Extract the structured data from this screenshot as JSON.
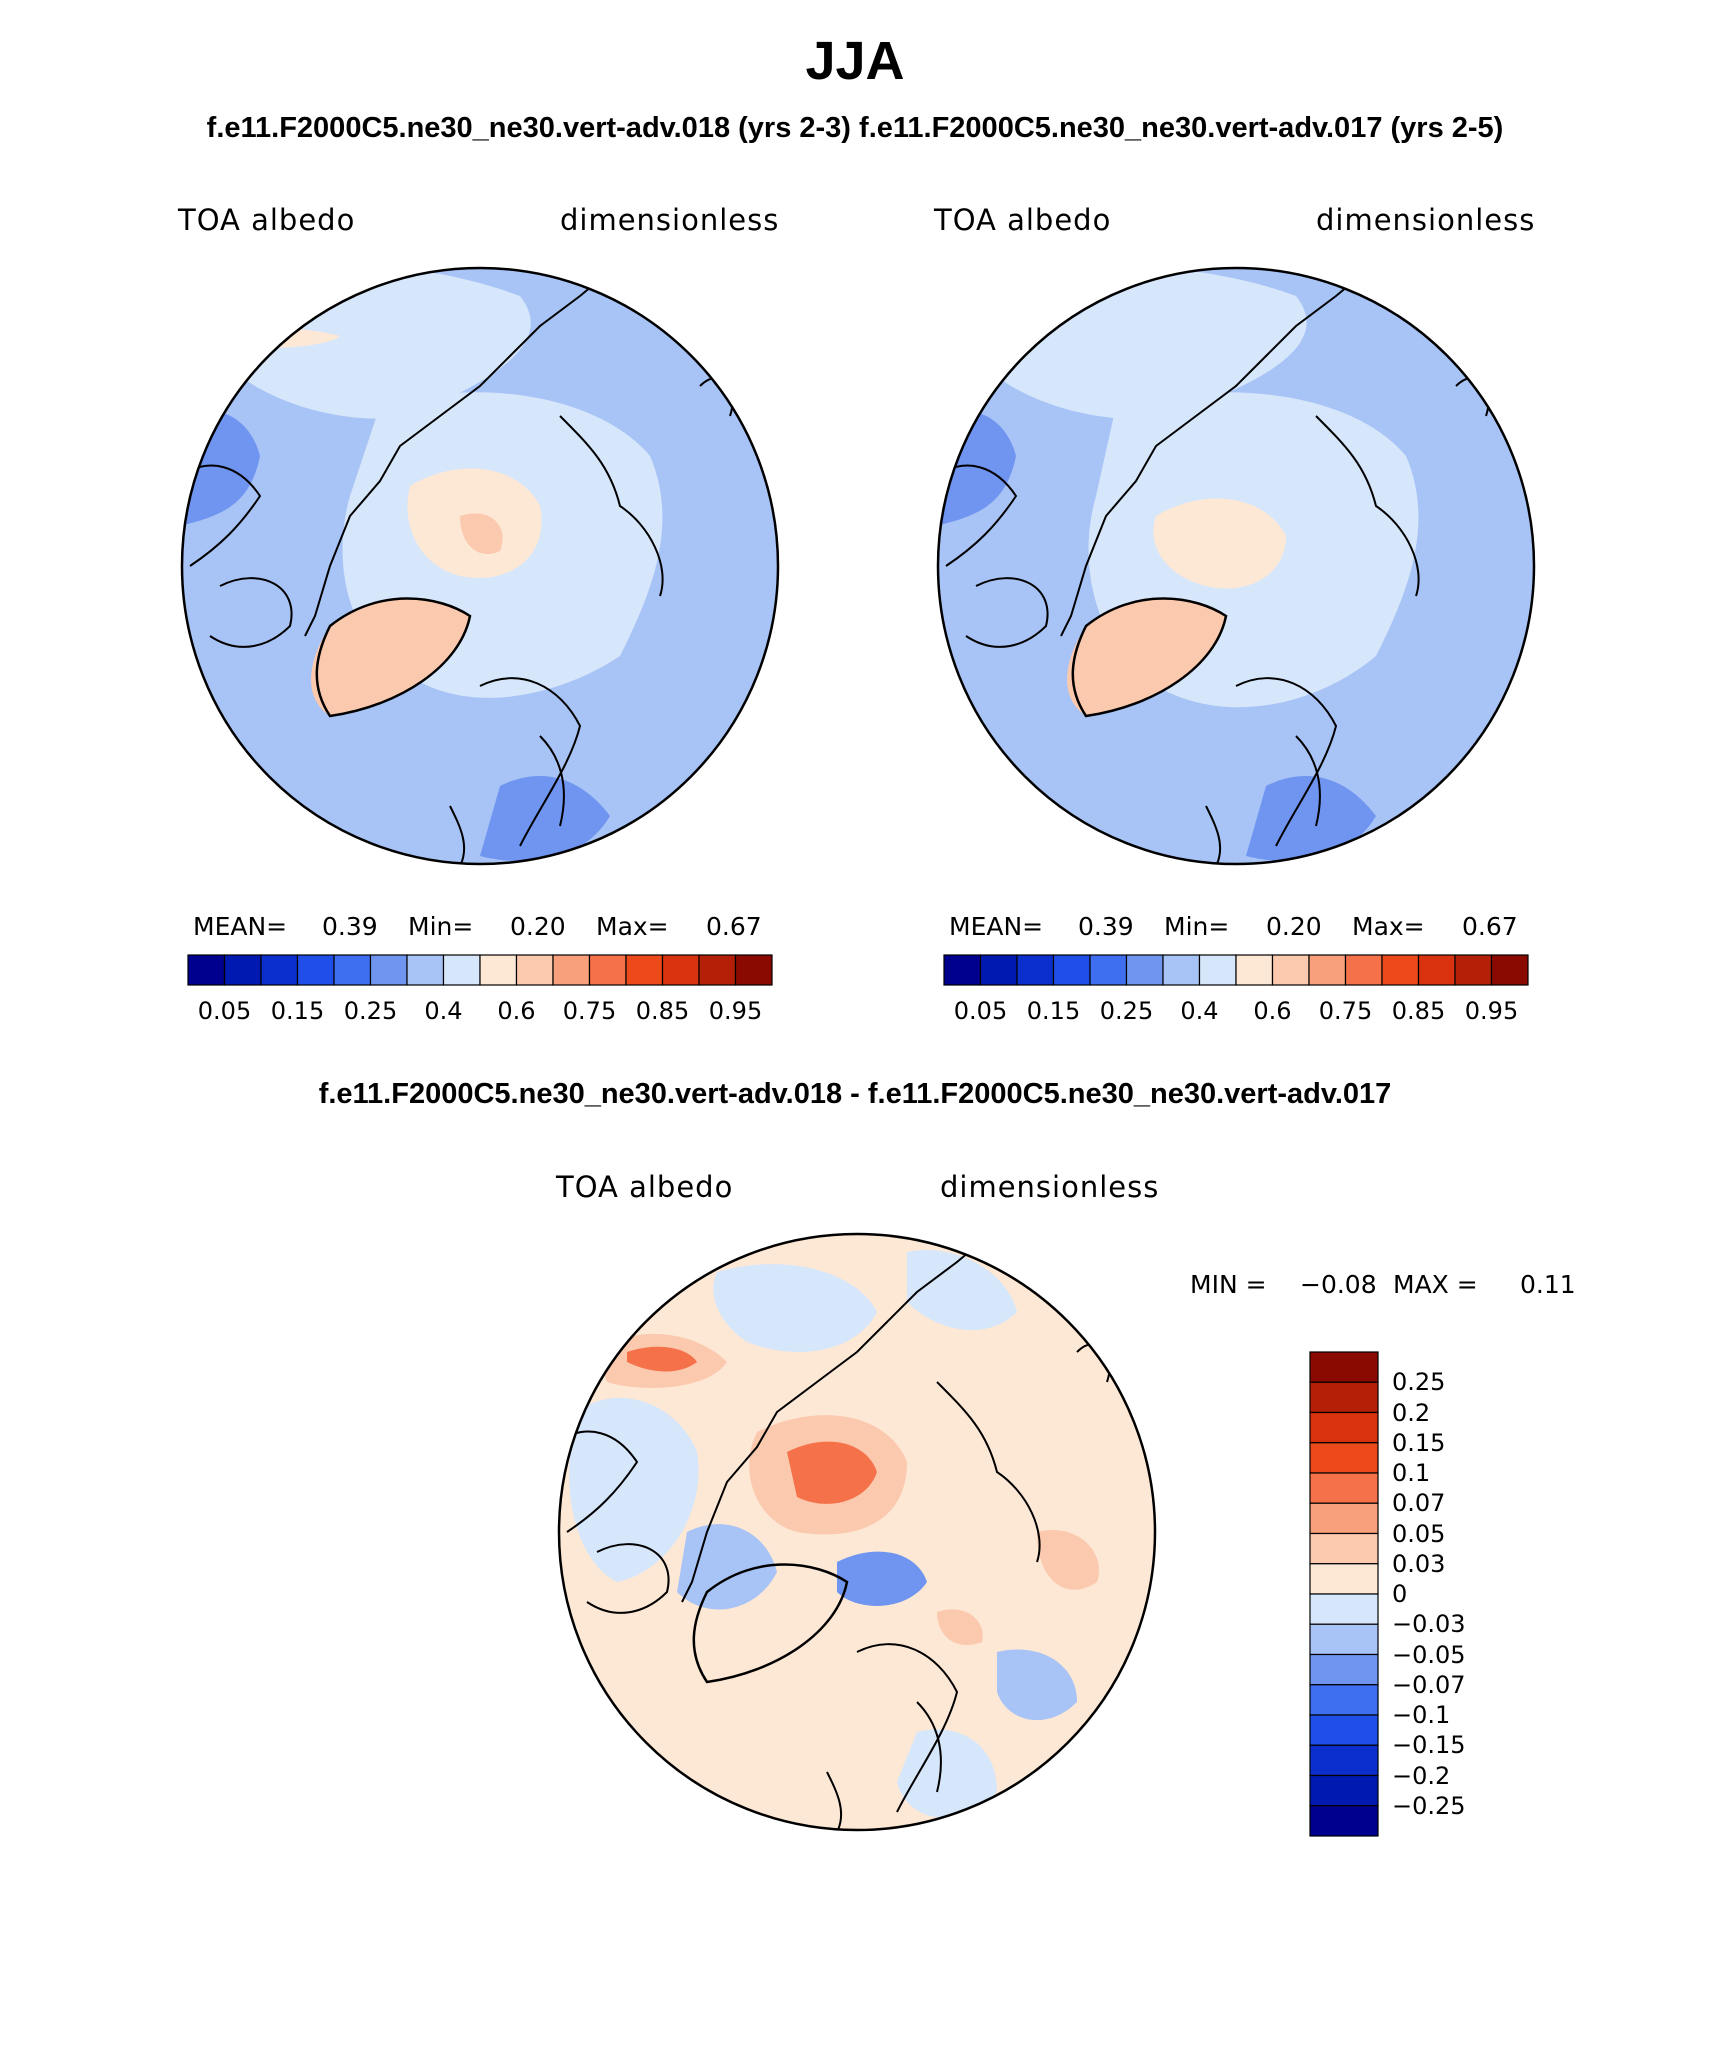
{
  "title": "JJA",
  "panels_subtitle_left": "f.e11.F2000C5.ne30_ne30.vert-adv.018 (yrs 2-3)",
  "panels_subtitle_right": "f.e11.F2000C5.ne30_ne30.vert-adv.017 (yrs 2-5)",
  "diff_subtitle": "f.e11.F2000C5.ne30_ne30.vert-adv.018 - f.e11.F2000C5.ne30_ne30.vert-adv.017",
  "panel_left": {
    "variable": "TOA albedo",
    "units": "dimensionless",
    "mean_label": "MEAN=",
    "mean": "0.39",
    "min_label": "Min=",
    "min": "0.20",
    "max_label": "Max=",
    "max": "0.67"
  },
  "panel_right": {
    "variable": "TOA albedo",
    "units": "dimensionless",
    "mean_label": "MEAN=",
    "mean": "0.39",
    "min_label": "Min=",
    "min": "0.20",
    "max_label": "Max=",
    "max": "0.67"
  },
  "panel_diff": {
    "variable": "TOA albedo",
    "units": "dimensionless",
    "min_label": "MIN =",
    "min": "−0.08",
    "max_label": "MAX =",
    "max": "0.11"
  },
  "colorbar_abs": {
    "colors": [
      "#00008f",
      "#0019b0",
      "#0a2fcc",
      "#1f4fe8",
      "#3d6ff0",
      "#6f95f0",
      "#a8c3f5",
      "#d6e6fb",
      "#fde8d6",
      "#fbc9ae",
      "#f8a07c",
      "#f5714a",
      "#ed4a1c",
      "#d9320e",
      "#b41f08",
      "#8a0a02"
    ],
    "ticks": [
      "0.05",
      "0.15",
      "0.25",
      "0.4",
      "0.6",
      "0.75",
      "0.85",
      "0.95"
    ]
  },
  "colorbar_diff": {
    "colors_top_to_bottom": [
      "#8a0a02",
      "#b41f08",
      "#d9320e",
      "#ed4a1c",
      "#f5714a",
      "#f8a07c",
      "#fbc9ae",
      "#fde8d6",
      "#d6e6fb",
      "#a8c3f5",
      "#6f95f0",
      "#3d6ff0",
      "#1f4fe8",
      "#0a2fcc",
      "#0019b0",
      "#00008f"
    ],
    "ticks_top_to_bottom": [
      "0.25",
      "0.2",
      "0.15",
      "0.1",
      "0.07",
      "0.05",
      "0.03",
      "0",
      "−0.03",
      "−0.05",
      "−0.07",
      "−0.1",
      "−0.15",
      "−0.2",
      "−0.25"
    ]
  }
}
